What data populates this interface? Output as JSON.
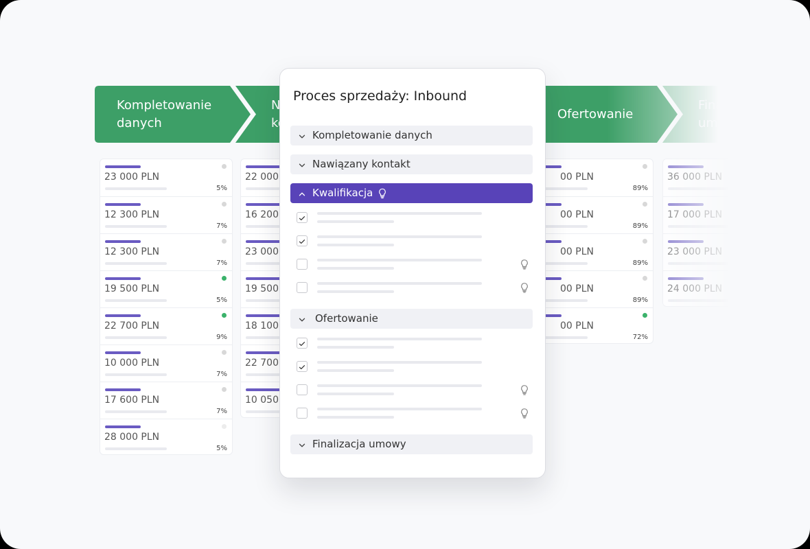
{
  "stages": [
    "Kompletowanie danych",
    "Nawiązany kontakt",
    "Ofertowanie",
    "Finalizacja umowy"
  ],
  "stage_color": "#3d9f67",
  "bar_color": "#6a5bc2",
  "columns": [
    {
      "cards": [
        {
          "amount": "23 000 PLN",
          "percent": "5%",
          "dot": "#d8d8d8"
        },
        {
          "amount": "12 300 PLN",
          "percent": "7%",
          "dot": "#d8d8d8"
        },
        {
          "amount": "12 300 PLN",
          "percent": "7%",
          "dot": "#d8d8d8"
        },
        {
          "amount": "19 500 PLN",
          "percent": "5%",
          "dot": "#3bb26b"
        },
        {
          "amount": "22 700 PLN",
          "percent": "9%",
          "dot": "#3bb26b"
        },
        {
          "amount": "10 000 PLN",
          "percent": "7%",
          "dot": "#d8d8d8"
        },
        {
          "amount": "17 600 PLN",
          "percent": "7%",
          "dot": "#d8d8d8"
        },
        {
          "amount": "28 000 PLN",
          "percent": "5%",
          "dot": "#ececec"
        }
      ]
    },
    {
      "cards": [
        {
          "amount": "22 000 PLN"
        },
        {
          "amount": "16 200 PLN"
        },
        {
          "amount": "23 000 PLN"
        },
        {
          "amount": "19 500 PLN"
        },
        {
          "amount": "18 100 PLN"
        },
        {
          "amount": "22 700 PLN"
        },
        {
          "amount": "10 050 PLN"
        }
      ]
    },
    {
      "cards": [
        {
          "amount": "00 PLN",
          "percent": "89%",
          "dot": "#d8d8d8"
        },
        {
          "amount": "00 PLN",
          "percent": "89%",
          "dot": "#d8d8d8"
        },
        {
          "amount": "00 PLN",
          "percent": "89%",
          "dot": "#d8d8d8"
        },
        {
          "amount": "00 PLN",
          "percent": "89%",
          "dot": "#d8d8d8"
        },
        {
          "amount": "00 PLN",
          "percent": "72%",
          "dot": "#3bb26b"
        }
      ]
    },
    {
      "cards": [
        {
          "amount": "36 000 PLN"
        },
        {
          "amount": "17 000 PLN"
        },
        {
          "amount": "23 000 PLN"
        },
        {
          "amount": "24 000 PLN"
        }
      ]
    }
  ],
  "modal": {
    "title": "Proces sprzedaży: Inbound",
    "accent": "#5843b8",
    "sections": [
      {
        "label": "Kompletowanie danych"
      },
      {
        "label": "Nawiązany kontakt"
      },
      {
        "label": "Kwalifikacja",
        "selected": true,
        "hint": true,
        "items": [
          {
            "checked": true
          },
          {
            "checked": true
          },
          {
            "checked": false,
            "hint": true
          },
          {
            "checked": false,
            "hint": true
          }
        ]
      },
      {
        "label": "Ofertowanie",
        "items": [
          {
            "checked": true
          },
          {
            "checked": true
          },
          {
            "checked": false,
            "hint": true
          },
          {
            "checked": false,
            "hint": true
          }
        ]
      },
      {
        "label": "Finalizacja umowy"
      }
    ]
  }
}
